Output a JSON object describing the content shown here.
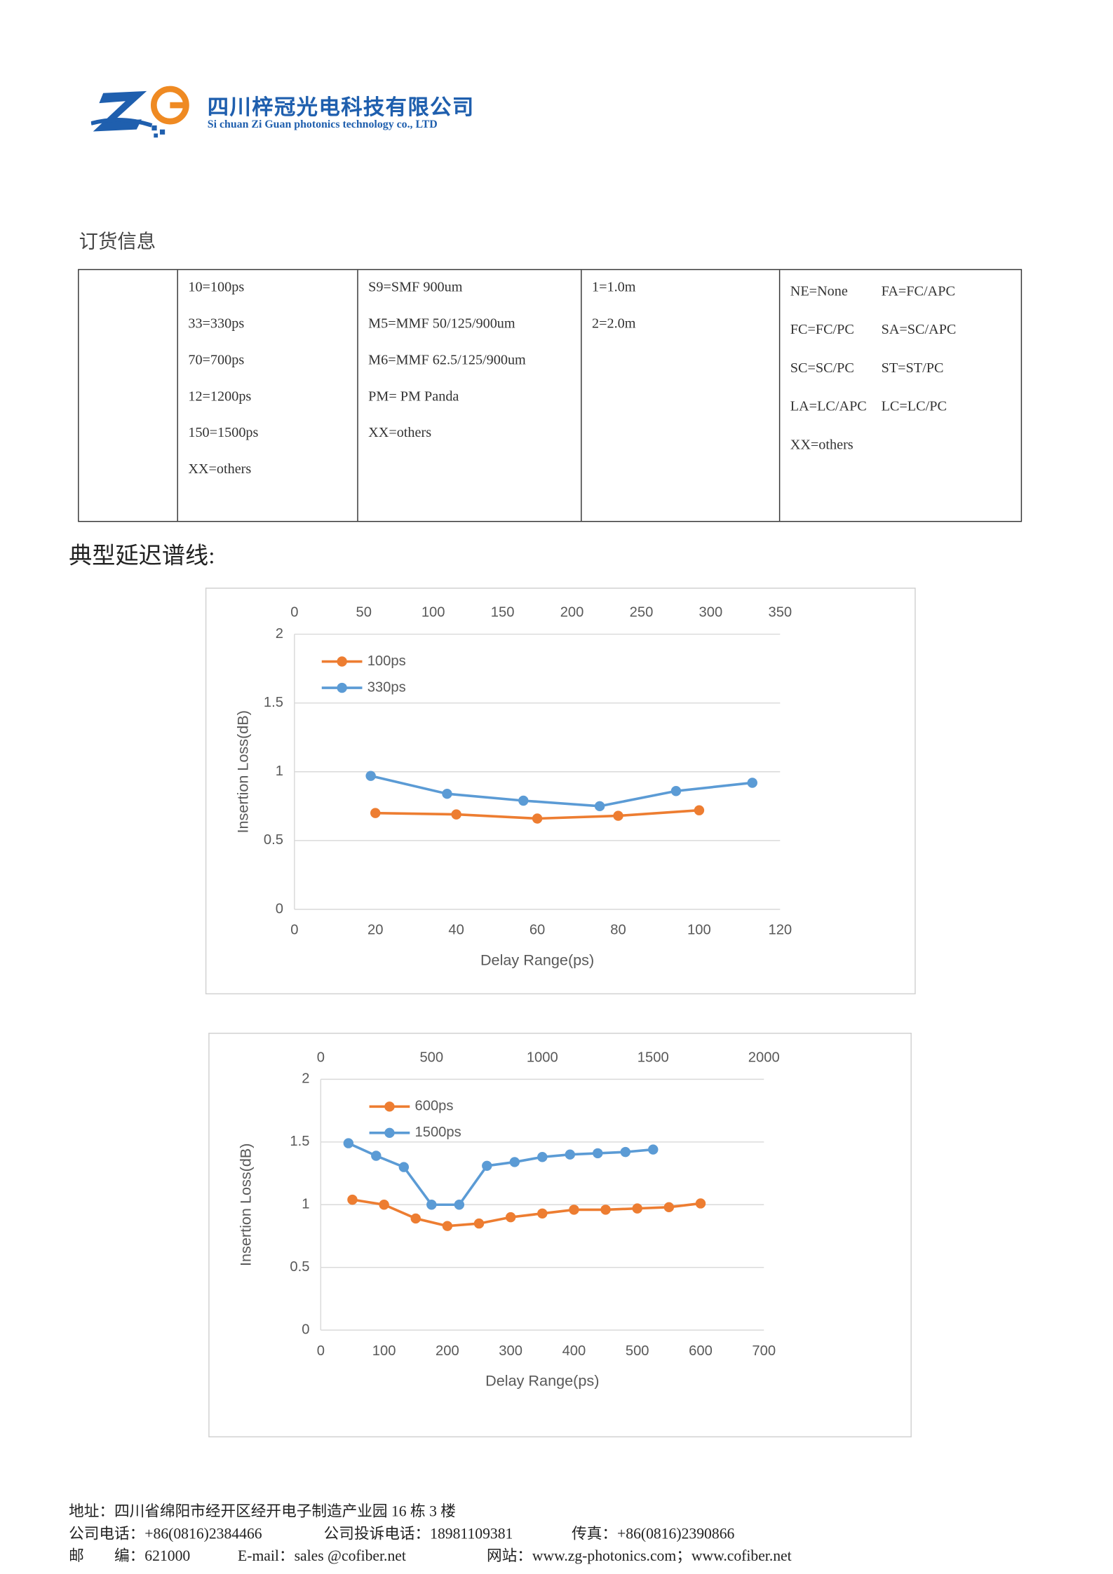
{
  "header": {
    "company_cn": "四川梓冠光电科技有限公司",
    "company_en": "Si chuan Zi Guan photonics technology co., LTD"
  },
  "ordering_title": "订货信息",
  "table": {
    "columns": [
      [],
      [
        "10=100ps",
        "33=330ps",
        "70=700ps",
        "12=1200ps",
        "150=1500ps",
        "XX=others"
      ],
      [
        "S9=SMF 900um",
        "M5=MMF 50/125/900um",
        "M6=MMF 62.5/125/900um",
        "PM= PM Panda",
        "XX=others"
      ],
      [
        "1=1.0m",
        "2=2.0m"
      ]
    ],
    "connector_rows": [
      [
        "NE=None",
        "FA=FC/APC"
      ],
      [
        "FC=FC/PC",
        "SA=SC/APC"
      ],
      [
        "SC=SC/PC",
        "ST=ST/PC"
      ],
      [
        "LA=LC/APC",
        "LC=LC/PC"
      ],
      [
        "XX=others"
      ]
    ]
  },
  "section_title": "典型延迟谱线:",
  "chart_data": [
    {
      "type": "line",
      "x_label": "Delay Range(ps)",
      "y_label": "Insertion Loss(dB)",
      "xlim": [
        0,
        120
      ],
      "xticks": [
        0,
        20,
        40,
        60,
        80,
        100,
        120
      ],
      "x2lim": [
        0,
        350
      ],
      "x2ticks": [
        0,
        50,
        100,
        150,
        200,
        250,
        300,
        350
      ],
      "ylim": [
        0,
        2
      ],
      "yticks": [
        0,
        0.5,
        1,
        1.5,
        2
      ],
      "grid": true,
      "series": [
        {
          "name": "100ps",
          "color": "#ed7d31",
          "x": [
            20,
            40,
            60,
            80,
            100
          ],
          "values": [
            0.7,
            0.69,
            0.66,
            0.68,
            0.72
          ]
        },
        {
          "name": "330ps",
          "color": "#5b9bd5",
          "axis": "x2",
          "x": [
            55,
            110,
            165,
            220,
            275,
            330
          ],
          "values": [
            0.97,
            0.84,
            0.79,
            0.75,
            0.86,
            0.92
          ]
        }
      ]
    },
    {
      "type": "line",
      "x_label": "Delay Range(ps)",
      "y_label": "Insertion Loss(dB)",
      "xlim": [
        0,
        700
      ],
      "xticks": [
        0,
        100,
        200,
        300,
        400,
        500,
        600,
        700
      ],
      "x2lim": [
        0,
        2000
      ],
      "x2ticks": [
        0,
        500,
        1000,
        1500,
        2000
      ],
      "ylim": [
        0,
        2
      ],
      "yticks": [
        0,
        0.5,
        1,
        1.5,
        2
      ],
      "grid": true,
      "series": [
        {
          "name": "600ps",
          "color": "#ed7d31",
          "x": [
            50,
            100,
            150,
            200,
            250,
            300,
            350,
            400,
            450,
            500,
            550,
            600
          ],
          "values": [
            1.04,
            1.0,
            0.89,
            0.83,
            0.85,
            0.9,
            0.93,
            0.96,
            0.96,
            0.97,
            0.98,
            1.01
          ]
        },
        {
          "name": "1500ps",
          "color": "#5b9bd5",
          "axis": "x2",
          "x": [
            125,
            250,
            375,
            500,
            625,
            750,
            875,
            1000,
            1125,
            1250,
            1375,
            1500
          ],
          "values": [
            1.49,
            1.39,
            1.3,
            1.0,
            1.0,
            1.31,
            1.34,
            1.38,
            1.4,
            1.41,
            1.42,
            1.44
          ]
        }
      ]
    }
  ],
  "footer": {
    "address": "地址：四川省绵阳市经开区经开电子制造产业园 16 栋 3 楼",
    "phone": "公司电话：+86(0816)2384466",
    "complaint": "公司投诉电话：18981109381",
    "fax": "传真：+86(0816)2390866",
    "postcode": "邮　　编：621000",
    "email": "E-mail：sales @cofiber.net",
    "website": "网站：www.zg-photonics.com；www.cofiber.net"
  }
}
